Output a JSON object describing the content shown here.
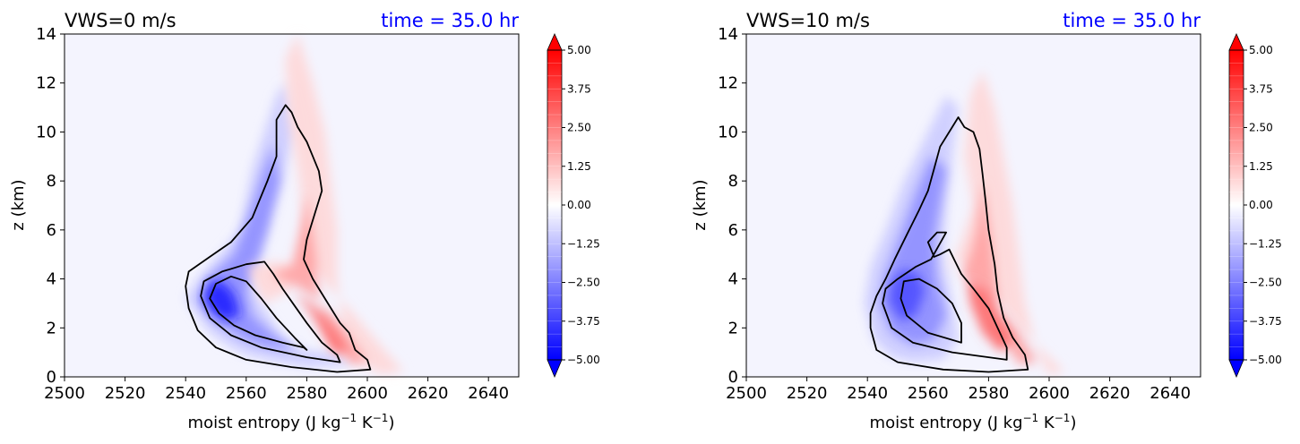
{
  "chart_data": [
    {
      "type": "contour",
      "title_left": "VWS=0 m/s",
      "title_right": "time = 35.0 hr",
      "title_right_color": "#0000ff",
      "xlabel": "moist entropy (J kg",
      "xlabel_unit_sup": "−1",
      "xlabel_mid": " K",
      "xlabel_unit_sup2": "−1",
      "xlabel_end": ")",
      "ylabel": "z (km)",
      "xlim": [
        2500,
        2650
      ],
      "ylim": [
        0,
        14
      ],
      "x_ticks": [
        "2500",
        "2520",
        "2540",
        "2560",
        "2580",
        "2600",
        "2620",
        "2640"
      ],
      "y_ticks": [
        "0",
        "2",
        "4",
        "6",
        "8",
        "10",
        "12",
        "14"
      ],
      "colorbar": {
        "min": -5.0,
        "max": 5.0,
        "extend": "both",
        "colormap": "bwr",
        "tick_labels": [
          "5.00",
          "3.75",
          "2.50",
          "1.25",
          "0.00",
          "−1.25",
          "−2.50",
          "−3.75",
          "−5.00"
        ]
      },
      "fields": {
        "negative": [
          {
            "x": [
              2540,
              2545,
              2548,
              2555,
              2560,
              2570,
              2575,
              2580,
              2595,
              2590,
              2575,
              2570,
              2565,
              2562,
              2565,
              2568,
              2572,
              2576,
              2573,
              2570,
              2566,
              2562,
              2558,
              2550,
              2544
            ],
            "y": [
              3.2,
              2.3,
              1.8,
              1.2,
              0.9,
              0.6,
              0.5,
              0.4,
              0.5,
              0.9,
              1.2,
              2.0,
              3.0,
              4.0,
              5.0,
              6.5,
              8.0,
              10.0,
              12.0,
              11.5,
              10.0,
              8.5,
              6.0,
              4.8,
              4.0
            ],
            "level": 1
          },
          {
            "x": [
              2544,
              2548,
              2553,
              2560,
              2568,
              2578,
              2570,
              2562,
              2560,
              2563,
              2567,
              2571,
              2569,
              2566,
              2562,
              2556,
              2548
            ],
            "y": [
              3.2,
              2.5,
              2.0,
              1.5,
              1.2,
              1.1,
              1.6,
              2.5,
              3.5,
              4.5,
              6.0,
              8.0,
              9.5,
              8.5,
              7.0,
              5.0,
              4.1
            ],
            "level": 2
          },
          {
            "x": [
              2546,
              2549,
              2553,
              2558,
              2556,
              2552,
              2548
            ],
            "y": [
              3.2,
              2.6,
              2.3,
              2.5,
              3.4,
              3.9,
              3.9
            ],
            "level": 4
          }
        ],
        "positive": [
          {
            "x": [
              2560,
              2570,
              2582,
              2596,
              2605,
              2612,
              2604,
              2596,
              2592,
              2590,
              2590,
              2588,
              2586,
              2582,
              2577,
              2573,
              2574,
              2577,
              2579,
              2578,
              2574,
              2566
            ],
            "y": [
              4.5,
              4.7,
              4.4,
              2.5,
              1.2,
              0.2,
              0.1,
              0.8,
              2.0,
              4.0,
              6.0,
              8.0,
              10.0,
              12.0,
              14.0,
              13.0,
              10.5,
              8.5,
              6.5,
              5.0,
              3.5,
              3.0
            ],
            "level": 1
          },
          {
            "x": [
              2568,
              2580,
              2592,
              2600,
              2595,
              2588,
              2584,
              2583,
              2580,
              2578,
              2575
            ],
            "y": [
              4.2,
              3.5,
              2.0,
              0.6,
              0.5,
              1.5,
              3.0,
              5.0,
              7.5,
              6.0,
              4.5
            ],
            "level": 2
          },
          {
            "x": [
              2576,
              2586,
              2594,
              2589,
              2582
            ],
            "y": [
              3.5,
              2.5,
              1.0,
              1.0,
              2.5
            ],
            "level": 3
          }
        ],
        "contours": [
          {
            "x": [
              2540,
              2541,
              2544,
              2550,
              2560,
              2575,
              2590,
              2601,
              2600,
              2596,
              2594,
              2591,
              2588,
              2584,
              2582,
              2579,
              2580,
              2583,
              2585,
              2584,
              2582,
              2580,
              2577,
              2575,
              2573,
              2570,
              2570,
              2567,
              2562,
              2555,
              2548,
              2541
            ],
            "y": [
              3.7,
              2.8,
              1.9,
              1.2,
              0.7,
              0.4,
              0.2,
              0.3,
              0.7,
              1.1,
              1.8,
              2.2,
              2.8,
              3.6,
              4.0,
              4.8,
              5.6,
              6.8,
              7.6,
              8.4,
              9.0,
              9.6,
              10.2,
              10.8,
              11.1,
              10.5,
              9.0,
              8.0,
              6.5,
              5.5,
              4.9,
              4.3
            ],
            "closed": true
          },
          {
            "x": [
              2545,
              2548,
              2555,
              2565,
              2580,
              2591,
              2590,
              2585,
              2580,
              2576,
              2572,
              2569,
              2566,
              2560,
              2552,
              2546
            ],
            "y": [
              3.3,
              2.4,
              1.7,
              1.2,
              0.8,
              0.6,
              0.9,
              1.4,
              2.2,
              2.9,
              3.6,
              4.2,
              4.7,
              4.6,
              4.3,
              3.9
            ],
            "closed": true
          },
          {
            "x": [
              2548,
              2551,
              2556,
              2563,
              2572,
              2579,
              2580,
              2576,
              2570,
              2565,
              2560,
              2555,
              2550
            ],
            "y": [
              3.2,
              2.6,
              2.1,
              1.7,
              1.4,
              1.2,
              1.1,
              1.6,
              2.4,
              3.2,
              3.9,
              4.1,
              3.8
            ],
            "closed": true
          }
        ]
      }
    },
    {
      "type": "contour",
      "title_left": "VWS=10 m/s",
      "title_right": "time = 35.0 hr",
      "title_right_color": "#0000ff",
      "xlabel": "moist entropy (J kg",
      "xlabel_unit_sup": "−1",
      "xlabel_mid": " K",
      "xlabel_unit_sup2": "−1",
      "xlabel_end": ")",
      "ylabel": "z (km)",
      "xlim": [
        2500,
        2650
      ],
      "ylim": [
        0,
        14
      ],
      "x_ticks": [
        "2500",
        "2520",
        "2540",
        "2560",
        "2580",
        "2600",
        "2620",
        "2640"
      ],
      "y_ticks": [
        "0",
        "2",
        "4",
        "6",
        "8",
        "10",
        "12",
        "14"
      ],
      "colorbar": {
        "min": -5.0,
        "max": 5.0,
        "extend": "both",
        "colormap": "bwr",
        "tick_labels": [
          "5.00",
          "3.75",
          "2.50",
          "1.25",
          "0.00",
          "−1.25",
          "−2.50",
          "−3.75",
          "−5.00"
        ]
      },
      "fields": {
        "negative": [
          {
            "x": [
              2539,
              2542,
              2548,
              2555,
              2565,
              2570,
              2568,
              2565,
              2566,
              2568,
              2570,
              2566,
              2560,
              2552,
              2546,
              2541
            ],
            "y": [
              3.0,
              1.5,
              0.8,
              0.6,
              0.7,
              1.5,
              3.0,
              5.0,
              7.0,
              9.0,
              11.0,
              11.5,
              10.0,
              8.0,
              6.0,
              4.5
            ],
            "level": 1
          },
          {
            "x": [
              2544,
              2548,
              2555,
              2562,
              2566,
              2563,
              2562,
              2564,
              2566,
              2561,
              2556,
              2550,
              2546
            ],
            "y": [
              3.0,
              1.8,
              1.3,
              1.5,
              2.5,
              4.0,
              5.5,
              7.0,
              8.5,
              9.0,
              7.5,
              5.5,
              4.2
            ],
            "level": 2
          },
          {
            "x": [
              2547,
              2551,
              2556,
              2559,
              2557,
              2552,
              2548
            ],
            "y": [
              3.1,
              2.3,
              2.5,
              3.5,
              4.2,
              4.4,
              3.9
            ],
            "level": 3
          }
        ],
        "positive": [
          {
            "x": [
              2568,
              2578,
              2590,
              2600,
              2605,
              2600,
              2596,
              2592,
              2590,
              2588,
              2585,
              2582,
              2578,
              2574,
              2572,
              2575,
              2571,
              2566
            ],
            "y": [
              5.0,
              4.0,
              2.0,
              0.8,
              0.2,
              0.1,
              1.0,
              3.0,
              5.0,
              7.0,
              9.0,
              11.0,
              12.5,
              11.5,
              9.0,
              7.0,
              5.5,
              4.0
            ],
            "level": 1
          },
          {
            "x": [
              2571,
              2580,
              2590,
              2596,
              2590,
              2585,
              2583,
              2581,
              2578,
              2576,
              2574
            ],
            "y": [
              4.2,
              3.2,
              1.8,
              0.6,
              0.5,
              1.5,
              3.0,
              5.5,
              8.0,
              6.0,
              5.0
            ],
            "level": 2
          },
          {
            "x": [
              2573,
              2580,
              2588,
              2584,
              2578,
              2574
            ],
            "y": [
              4.0,
              3.5,
              1.5,
              1.0,
              1.8,
              3.0
            ],
            "level": 3
          }
        ],
        "contours": [
          {
            "x": [
              2541,
              2543,
              2550,
              2565,
              2580,
              2593,
              2592,
              2588,
              2585,
              2583,
              2582,
              2580,
              2579,
              2578,
              2577,
              2575,
              2572,
              2570,
              2567,
              2564,
              2562,
              2560,
              2557,
              2553,
              2549,
              2546,
              2543,
              2541
            ],
            "y": [
              2.0,
              1.1,
              0.6,
              0.3,
              0.2,
              0.3,
              0.9,
              1.6,
              2.4,
              3.5,
              4.6,
              6.0,
              7.2,
              8.3,
              9.3,
              10.0,
              10.2,
              10.6,
              10.0,
              9.4,
              8.5,
              7.6,
              6.8,
              5.8,
              4.8,
              4.0,
              3.3,
              2.6
            ],
            "closed": true
          },
          {
            "x": [
              2545,
              2548,
              2555,
              2568,
              2580,
              2586,
              2586,
              2583,
              2580,
              2575,
              2571,
              2569,
              2567,
              2564,
              2562,
              2560,
              2563,
              2566,
              2561,
              2556,
              2550,
              2546
            ],
            "y": [
              3.0,
              2.0,
              1.4,
              1.0,
              0.8,
              0.7,
              1.2,
              2.0,
              2.8,
              3.6,
              4.2,
              4.7,
              5.2,
              5.0,
              4.9,
              5.5,
              5.9,
              5.9,
              4.8,
              4.5,
              4.0,
              3.6
            ],
            "closed": true
          },
          {
            "x": [
              2551,
              2553,
              2560,
              2571,
              2571,
              2568,
              2563,
              2557,
              2552
            ],
            "y": [
              3.2,
              2.5,
              1.8,
              1.4,
              2.2,
              3.0,
              3.6,
              4.0,
              3.9
            ],
            "closed": true
          }
        ]
      }
    }
  ]
}
